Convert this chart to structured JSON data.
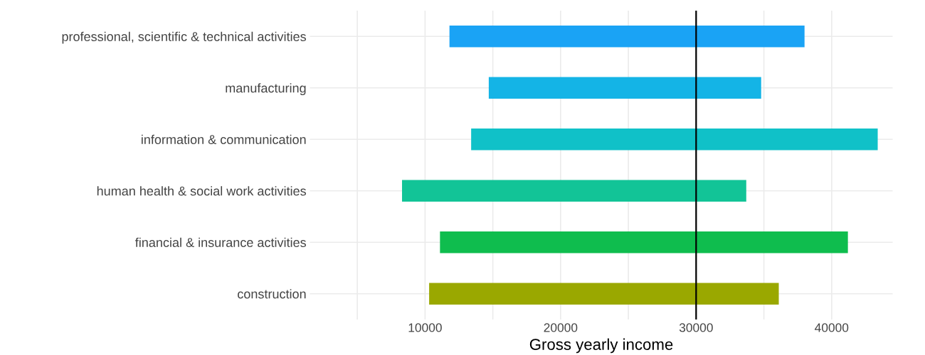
{
  "chart_data": {
    "type": "bar",
    "orientation": "horizontal",
    "xlabel": "Gross yearly income",
    "categories": [
      "professional, scientific & technical activities",
      "manufacturing",
      "information & communication",
      "human health & social work activities",
      "financial & insurance activities",
      "construction"
    ],
    "base": [
      11800,
      14700,
      13400,
      8300,
      11100,
      10300
    ],
    "values": [
      26200,
      20100,
      30000,
      25400,
      30100,
      25800
    ],
    "colors": [
      "#1aa3f5",
      "#14b4e6",
      "#10c1c8",
      "#12c497",
      "#0fbd4e",
      "#9aa800"
    ],
    "xlim": [
      1500,
      44500
    ],
    "xticks": [
      {
        "value": 5000,
        "label": null
      },
      10000,
      {
        "value": 15000,
        "label": null
      },
      20000,
      {
        "value": 25000,
        "label": null
      },
      30000,
      {
        "value": 35000,
        "label": null
      },
      40000
    ],
    "ref_lines": [
      {
        "axis": "x",
        "value": 30000,
        "color": "#000000"
      }
    ],
    "grid": true
  }
}
